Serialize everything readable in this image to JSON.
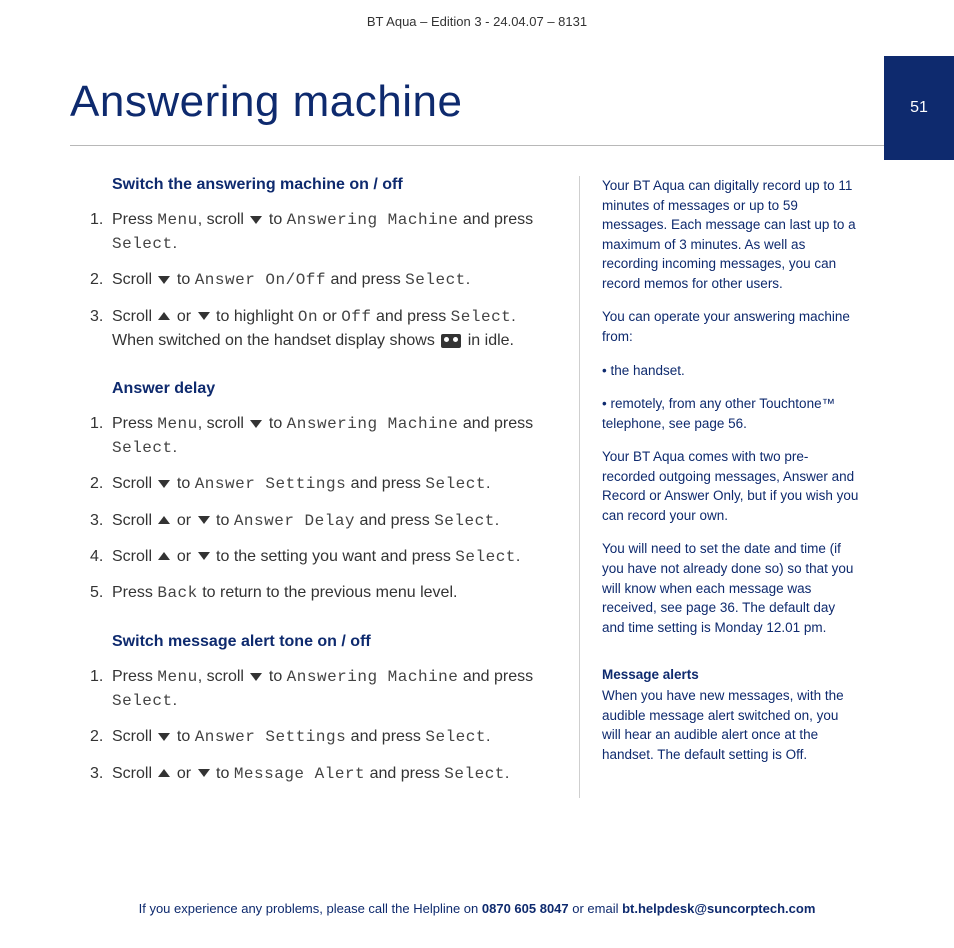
{
  "header": "BT Aqua – Edition 3 -  24.04.07 – 8131",
  "page_number": "51",
  "title": "Answering machine",
  "sections": [
    {
      "heading": "Switch the answering machine on / off",
      "steps": [
        {
          "parts": [
            "Press ",
            {
              "lcd": "Menu"
            },
            ", scroll ",
            {
              "icon": "down"
            },
            " to ",
            {
              "lcd": "Answering Machine"
            },
            " and press ",
            {
              "lcd": "Select"
            },
            "."
          ]
        },
        {
          "parts": [
            "Scroll ",
            {
              "icon": "down"
            },
            " to ",
            {
              "lcd": "Answer On/Off"
            },
            " and press ",
            {
              "lcd": "Select"
            },
            "."
          ]
        },
        {
          "parts": [
            "Scroll ",
            {
              "icon": "up"
            },
            " or ",
            {
              "icon": "down"
            },
            " to highlight ",
            {
              "lcd": "On"
            },
            " or ",
            {
              "lcd": "Off"
            },
            " and press ",
            {
              "lcd": "Select"
            },
            ". When switched on the handset display shows ",
            {
              "icon": "tape"
            },
            " in idle."
          ]
        }
      ]
    },
    {
      "heading": "Answer delay",
      "steps": [
        {
          "parts": [
            "Press ",
            {
              "lcd": "Menu"
            },
            ", scroll ",
            {
              "icon": "down"
            },
            " to ",
            {
              "lcd": "Answering Machine"
            },
            " and press ",
            {
              "lcd": "Select"
            },
            "."
          ]
        },
        {
          "parts": [
            "Scroll ",
            {
              "icon": "down"
            },
            " to ",
            {
              "lcd": "Answer Settings"
            },
            " and press ",
            {
              "lcd": "Select"
            },
            "."
          ]
        },
        {
          "parts": [
            "Scroll ",
            {
              "icon": "up"
            },
            " or ",
            {
              "icon": "down"
            },
            " to ",
            {
              "lcd": "Answer Delay"
            },
            " and press ",
            {
              "lcd": "Select"
            },
            "."
          ]
        },
        {
          "parts": [
            "Scroll ",
            {
              "icon": "up"
            },
            " or ",
            {
              "icon": "down"
            },
            " to the setting you want and press ",
            {
              "lcd": "Select"
            },
            "."
          ]
        },
        {
          "parts": [
            "Press ",
            {
              "lcd": "Back"
            },
            " to return to the previous menu level."
          ]
        }
      ]
    },
    {
      "heading": "Switch message alert tone on / off",
      "steps": [
        {
          "parts": [
            "Press ",
            {
              "lcd": "Menu"
            },
            ", scroll ",
            {
              "icon": "down"
            },
            " to ",
            {
              "lcd": "Answering Machine"
            },
            " and press ",
            {
              "lcd": "Select"
            },
            "."
          ]
        },
        {
          "parts": [
            "Scroll ",
            {
              "icon": "down"
            },
            " to ",
            {
              "lcd": "Answer Settings"
            },
            " and press ",
            {
              "lcd": "Select"
            },
            "."
          ]
        },
        {
          "parts": [
            "Scroll ",
            {
              "icon": "up"
            },
            " or ",
            {
              "icon": "down"
            },
            " to ",
            {
              "lcd": "Message Alert"
            },
            " and press ",
            {
              "lcd": "Select"
            },
            "."
          ]
        }
      ]
    }
  ],
  "sidebar": {
    "paras": [
      "Your BT Aqua can digitally record up to 11 minutes of messages or up to 59 messages. Each message can last up to a maximum of 3 minutes. As well as recording incoming messages, you can record memos for other users.",
      "You can operate your answering machine from:",
      "• the handset.",
      "• remotely, from any other Touchtone™ telephone, see page 56.",
      "Your BT Aqua comes with two pre-recorded outgoing messages, Answer and Record or Answer Only, but if you wish you can record your own.",
      "You will need to set the date and time (if you have not already done so) so that you will know when each message was received, see page 36. The default day and time setting is Monday 12.01 pm."
    ],
    "alert_heading": "Message alerts",
    "alert_body": "When you have new messages, with the audible message alert switched on, you will hear an audible alert once at the handset. The default setting is Off."
  },
  "footer": {
    "pre": "If you experience any problems, please call the Helpline on ",
    "phone": "0870 605 8047",
    "mid": " or email ",
    "email": "bt.helpdesk@suncorptech.com"
  },
  "colors": {
    "brand_blue": "#0e2a6e",
    "text": "#333333",
    "rule": "#b8b8b8",
    "background": "#ffffff"
  }
}
